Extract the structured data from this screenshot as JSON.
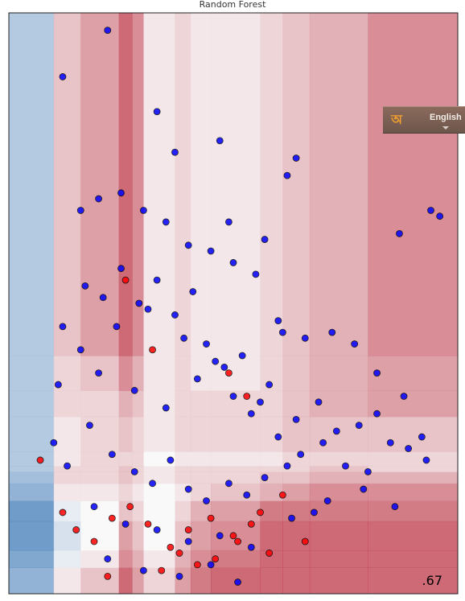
{
  "chart_data": {
    "type": "scatter",
    "title": "Random Forest",
    "xlabel": "",
    "ylabel": "",
    "score_label": ".67",
    "grid": false,
    "legend": "none",
    "background": "decision-surface",
    "colors": {
      "class_0": "#0000ff",
      "class_1": "#ff0000",
      "surface_low": "#2166ac",
      "surface_mid": "#f7f7f7",
      "surface_high": "#b2182b"
    },
    "xlim": [
      0,
      10
    ],
    "ylim": [
      0,
      10
    ],
    "surface_x_edges": [
      0,
      1,
      1.6,
      2.45,
      2.75,
      3,
      3.7,
      4.05,
      4.5,
      5.6,
      6.1,
      6.7,
      8,
      10
    ],
    "surface_y_edges": [
      0,
      0.45,
      0.75,
      1.25,
      1.6,
      1.9,
      2.1,
      2.2,
      2.45,
      3.05,
      3.5,
      4.1,
      10
    ],
    "surface_values": [
      [
        0.2,
        0.55,
        0.65,
        0.9,
        0.75,
        0.6,
        0.75,
        0.85,
        0.9,
        0.9,
        0.9,
        0.9,
        0.9
      ],
      [
        0.15,
        0.45,
        0.55,
        0.8,
        0.7,
        0.55,
        0.7,
        0.8,
        0.85,
        0.9,
        0.9,
        0.9,
        0.9
      ],
      [
        0.1,
        0.4,
        0.5,
        0.75,
        0.65,
        0.5,
        0.65,
        0.75,
        0.8,
        0.9,
        0.9,
        0.9,
        0.9
      ],
      [
        0.1,
        0.45,
        0.5,
        0.65,
        0.6,
        0.5,
        0.6,
        0.7,
        0.75,
        0.85,
        0.85,
        0.85,
        0.85
      ],
      [
        0.2,
        0.55,
        0.55,
        0.6,
        0.55,
        0.5,
        0.55,
        0.6,
        0.65,
        0.7,
        0.75,
        0.8,
        0.8
      ],
      [
        0.25,
        0.6,
        0.6,
        0.65,
        0.6,
        0.55,
        0.6,
        0.6,
        0.6,
        0.65,
        0.65,
        0.7,
        0.7
      ],
      [
        0.3,
        0.6,
        0.6,
        0.65,
        0.6,
        0.55,
        0.6,
        0.6,
        0.6,
        0.6,
        0.6,
        0.65,
        0.6
      ],
      [
        0.3,
        0.55,
        0.6,
        0.6,
        0.6,
        0.5,
        0.55,
        0.55,
        0.55,
        0.55,
        0.6,
        0.6,
        0.6
      ],
      [
        0.3,
        0.55,
        0.6,
        0.65,
        0.6,
        0.55,
        0.6,
        0.6,
        0.6,
        0.6,
        0.65,
        0.65,
        0.65
      ],
      [
        0.3,
        0.6,
        0.6,
        0.7,
        0.65,
        0.55,
        0.6,
        0.6,
        0.6,
        0.6,
        0.65,
        0.7,
        0.75
      ],
      [
        0.3,
        0.6,
        0.65,
        0.8,
        0.7,
        0.55,
        0.6,
        0.55,
        0.55,
        0.6,
        0.65,
        0.7,
        0.75
      ],
      [
        0.3,
        0.65,
        0.75,
        0.9,
        0.8,
        0.55,
        0.6,
        0.55,
        0.55,
        0.6,
        0.65,
        0.7,
        0.8
      ]
    ],
    "series": [
      {
        "class": 0,
        "x": [
          1.6,
          2.0,
          2.4,
          2.8,
          3.1,
          3.5,
          3.9,
          4.2,
          4.6,
          5.0,
          5.4,
          5.8,
          6.1,
          6.4,
          6.9,
          7.3,
          7.8,
          8.2,
          8.5,
          8.9,
          9.2,
          1.7,
          2.1,
          2.5,
          2.9,
          3.3,
          3.7,
          4.1,
          4.4,
          4.8,
          5.2,
          5.6,
          6.0,
          6.5,
          7.0,
          7.5,
          8.0,
          1.8,
          2.3,
          2.8,
          3.2,
          3.6,
          4.0,
          4.4,
          4.9,
          5.3,
          5.7,
          6.2,
          6.8,
          1.9,
          2.6,
          3.3,
          4.0,
          4.7,
          5.4,
          6.3,
          7.1,
          7.9,
          8.6,
          2.2,
          3.0,
          3.8,
          4.5,
          5.1,
          1.2,
          1.1,
          1.3,
          1.0,
          9.4,
          9.6,
          8.7,
          6.2,
          6.4,
          5.7,
          4.7,
          4.9,
          3.3,
          3.7,
          2.2,
          1.2,
          1.6,
          2.0,
          2.5,
          3.0,
          3.5,
          4.0,
          4.5,
          5.0,
          5.5,
          6.0,
          6.6,
          7.2,
          7.7,
          8.2,
          8.8,
          9.3
        ],
        "y": [
          4.2,
          3.8,
          4.6,
          3.5,
          4.9,
          3.2,
          4.4,
          3.7,
          4.0,
          3.4,
          3.1,
          3.6,
          4.5,
          3.0,
          3.3,
          2.8,
          2.9,
          3.1,
          2.6,
          2.5,
          2.7,
          5.3,
          5.1,
          5.6,
          5.0,
          5.4,
          4.8,
          5.2,
          4.3,
          3.9,
          4.1,
          3.3,
          2.7,
          2.4,
          2.6,
          2.2,
          2.1,
          2.9,
          2.4,
          2.1,
          1.9,
          2.3,
          1.8,
          1.6,
          1.9,
          1.7,
          2.0,
          2.2,
          1.4,
          1.5,
          1.2,
          1.1,
          0.9,
          1.0,
          0.8,
          1.3,
          1.6,
          1.8,
          1.5,
          0.6,
          0.4,
          0.3,
          0.5,
          0.2,
          4.6,
          3.6,
          2.2,
          2.6,
          6.6,
          6.5,
          6.2,
          7.2,
          7.5,
          6.1,
          7.8,
          6.4,
          8.3,
          7.6,
          9.7,
          8.9,
          6.6,
          6.8,
          6.9,
          6.6,
          6.4,
          6.0,
          5.9,
          5.7,
          5.5,
          4.7,
          4.4,
          4.5,
          4.3,
          3.8,
          3.4,
          2.3
        ]
      },
      {
        "class": 1,
        "x": [
          1.2,
          1.5,
          1.9,
          2.3,
          2.7,
          3.1,
          3.6,
          4.0,
          4.5,
          5.0,
          5.4,
          5.8,
          4.2,
          4.6,
          5.1,
          5.6,
          3.4,
          3.8,
          2.2,
          6.1,
          6.6,
          0.7,
          4.9,
          5.3,
          3.2,
          2.6
        ],
        "y": [
          1.4,
          1.1,
          0.9,
          1.3,
          1.5,
          1.2,
          0.8,
          1.1,
          1.3,
          1.0,
          1.2,
          0.7,
          0.5,
          0.6,
          0.9,
          1.4,
          0.4,
          0.7,
          0.3,
          1.7,
          0.9,
          2.3,
          3.8,
          3.4,
          4.2,
          5.4
        ]
      }
    ]
  },
  "language_widget": {
    "icon_glyph": "অ",
    "label": "English"
  }
}
